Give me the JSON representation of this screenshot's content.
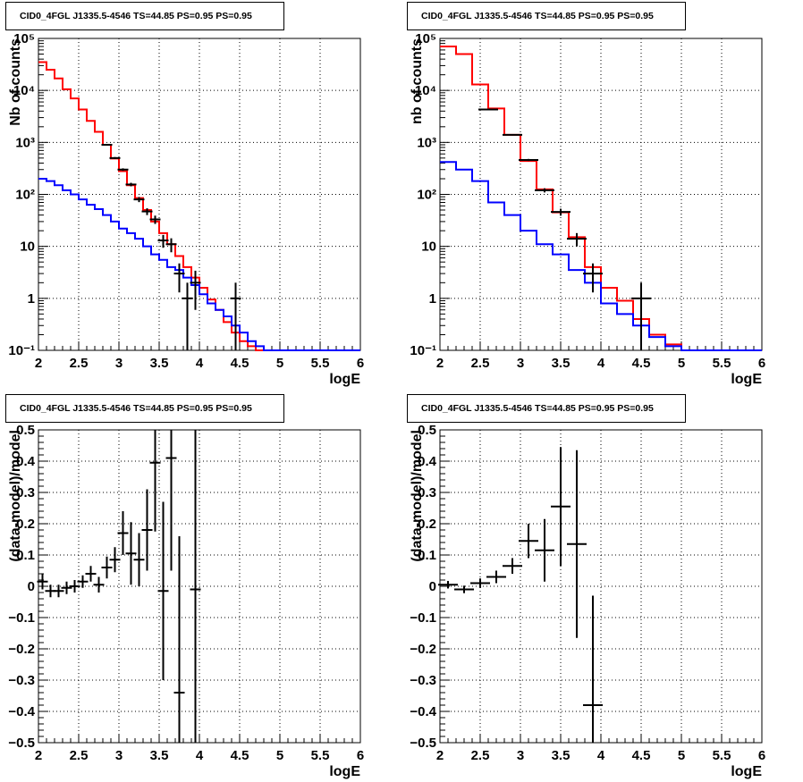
{
  "colors": {
    "data": "#000000",
    "total_model": "#ff0000",
    "component": "#0000ff",
    "grid": "#000000"
  },
  "chart_data": [
    {
      "type": "line",
      "title": "CID0_4FGL J1335.5-4546 TS=44.85 PS=0.95 PS=0.95",
      "xlabel": "logE",
      "ylabel": "Nb of counts",
      "xlim": [
        2,
        6
      ],
      "ylim": [
        0.1,
        100000
      ],
      "yscale": "log",
      "grid": true,
      "x_ticks": [
        "2",
        "2.5",
        "3",
        "3.5",
        "4",
        "4.5",
        "5",
        "5.5",
        "6"
      ],
      "y_ticks": [
        "10⁻¹",
        "1",
        "10",
        "10²",
        "10³",
        "10⁴",
        "10⁵"
      ],
      "bin_edges": [
        2.0,
        2.1,
        2.2,
        2.3,
        2.4,
        2.5,
        2.6,
        2.7,
        2.8,
        2.9,
        3.0,
        3.1,
        3.2,
        3.3,
        3.4,
        3.5,
        3.6,
        3.7,
        3.8,
        3.9,
        4.0,
        4.1,
        4.2,
        4.3,
        4.4,
        4.5,
        4.6,
        4.7,
        4.8,
        4.9,
        5.0,
        5.1,
        5.2,
        5.3,
        5.4,
        5.5,
        5.6,
        5.7,
        5.8,
        5.9,
        6.0
      ],
      "series": [
        {
          "name": "model",
          "color": "#ff0000",
          "step": true,
          "values": [
            35000,
            25000,
            17000,
            10500,
            7000,
            4300,
            2600,
            1600,
            900,
            490,
            280,
            150,
            85,
            50,
            30,
            18,
            11,
            6.5,
            4.0,
            2.5,
            1.6,
            0.95,
            0.6,
            0.35,
            0.22,
            0.15,
            0.12,
            0.1,
            0.1,
            0.1,
            0.1,
            0.1,
            0.1,
            0.1,
            0.1,
            0.1,
            0.1,
            0.1,
            0.1,
            0.1
          ]
        },
        {
          "name": "component",
          "color": "#0000ff",
          "step": true,
          "values": [
            200,
            180,
            150,
            120,
            100,
            80,
            63,
            52,
            40,
            30,
            22,
            18,
            14,
            10,
            7,
            5.5,
            4,
            3.5,
            2.5,
            1.8,
            1.2,
            0.8,
            0.6,
            0.45,
            0.3,
            0.22,
            0.15,
            0.12,
            0.1,
            0.1,
            0.1,
            0.1,
            0.1,
            0.1,
            0.1,
            0.1,
            0.1,
            0.1,
            0.1,
            0.1
          ]
        }
      ],
      "points": [
        {
          "x": 2.85,
          "y": 900,
          "err": 30
        },
        {
          "x": 2.95,
          "y": 500,
          "err": 22
        },
        {
          "x": 3.05,
          "y": 300,
          "err": 17
        },
        {
          "x": 3.15,
          "y": 155,
          "err": 12
        },
        {
          "x": 3.25,
          "y": 80,
          "err": 9
        },
        {
          "x": 3.35,
          "y": 47,
          "err": 7
        },
        {
          "x": 3.45,
          "y": 33,
          "err": 6
        },
        {
          "x": 3.55,
          "y": 13,
          "err": 3.6
        },
        {
          "x": 3.65,
          "y": 11,
          "err": 3.3
        },
        {
          "x": 3.75,
          "y": 3,
          "err": 1.7
        },
        {
          "x": 3.85,
          "y": 1,
          "err": 1
        },
        {
          "x": 3.95,
          "y": 2,
          "err": 1.4
        },
        {
          "x": 4.45,
          "y": 1,
          "err": 1
        }
      ]
    },
    {
      "type": "line",
      "title": "CID0_4FGL J1335.5-4546 TS=44.85 PS=0.95 PS=0.95",
      "xlabel": "logE",
      "ylabel": "nb of counts",
      "xlim": [
        2,
        6
      ],
      "ylim": [
        0.1,
        100000
      ],
      "yscale": "log",
      "grid": true,
      "x_ticks": [
        "2",
        "2.5",
        "3",
        "3.5",
        "4",
        "4.5",
        "5",
        "5.5",
        "6"
      ],
      "y_ticks": [
        "10⁻¹",
        "1",
        "10",
        "10²",
        "10³",
        "10⁴",
        "10⁵"
      ],
      "bin_edges": [
        2.0,
        2.2,
        2.4,
        2.6,
        2.8,
        3.0,
        3.2,
        3.4,
        3.6,
        3.8,
        4.0,
        4.2,
        4.4,
        4.6,
        4.8,
        5.0,
        5.2,
        5.4,
        5.6,
        5.8,
        6.0
      ],
      "series": [
        {
          "name": "model",
          "color": "#ff0000",
          "step": true,
          "values": [
            70000,
            50000,
            13000,
            4500,
            1400,
            440,
            125,
            45,
            15,
            4,
            1.6,
            0.9,
            0.4,
            0.2,
            0.13,
            0.1,
            0.1,
            0.1,
            0.1,
            0.1
          ]
        },
        {
          "name": "component",
          "color": "#0000ff",
          "step": true,
          "values": [
            420,
            300,
            180,
            70,
            40,
            20,
            11,
            7,
            3.5,
            2,
            0.8,
            0.5,
            0.3,
            0.18,
            0.12,
            0.1,
            0.1,
            0.1,
            0.1,
            0.1
          ]
        }
      ],
      "points": [
        {
          "x": 2.6,
          "y": 4300,
          "err": 70
        },
        {
          "x": 2.9,
          "y": 1400,
          "err": 40
        },
        {
          "x": 3.1,
          "y": 460,
          "err": 21
        },
        {
          "x": 3.3,
          "y": 120,
          "err": 11
        },
        {
          "x": 3.5,
          "y": 46,
          "err": 7
        },
        {
          "x": 3.7,
          "y": 14,
          "err": 4
        },
        {
          "x": 3.9,
          "y": 3,
          "err": 1.7
        },
        {
          "x": 4.5,
          "y": 1,
          "err": 1
        }
      ]
    },
    {
      "type": "scatter",
      "title": "CID0_4FGL J1335.5-4546 TS=44.85 PS=0.95 PS=0.95",
      "xlabel": "logE",
      "ylabel": "(data-model)/model",
      "xlim": [
        2,
        6
      ],
      "ylim": [
        -0.5,
        0.5
      ],
      "grid": true,
      "x_ticks": [
        "2",
        "2.5",
        "3",
        "3.5",
        "4",
        "4.5",
        "5",
        "5.5",
        "6"
      ],
      "y_ticks": [
        "−0.5",
        "−0.4",
        "−0.3",
        "−0.2",
        "−0.1",
        "0",
        "0.1",
        "0.2",
        "0.3",
        "0.4",
        "0.5"
      ],
      "points": [
        {
          "x": 2.05,
          "y": 0.015,
          "err": 0.025
        },
        {
          "x": 2.15,
          "y": -0.015,
          "err": 0.02
        },
        {
          "x": 2.25,
          "y": -0.015,
          "err": 0.02
        },
        {
          "x": 2.35,
          "y": -0.005,
          "err": 0.02
        },
        {
          "x": 2.45,
          "y": 0.0,
          "err": 0.02
        },
        {
          "x": 2.55,
          "y": 0.015,
          "err": 0.02
        },
        {
          "x": 2.65,
          "y": 0.04,
          "err": 0.025
        },
        {
          "x": 2.75,
          "y": 0.005,
          "err": 0.025
        },
        {
          "x": 2.85,
          "y": 0.06,
          "err": 0.035
        },
        {
          "x": 2.95,
          "y": 0.085,
          "err": 0.04
        },
        {
          "x": 3.05,
          "y": 0.17,
          "err": 0.07
        },
        {
          "x": 3.15,
          "y": 0.105,
          "err": 0.1
        },
        {
          "x": 3.25,
          "y": 0.085,
          "err": 0.085
        },
        {
          "x": 3.35,
          "y": 0.18,
          "err": 0.13
        },
        {
          "x": 3.45,
          "y": 0.395,
          "err": 0.22
        },
        {
          "x": 3.55,
          "y": -0.015,
          "err": 0.285
        },
        {
          "x": 3.65,
          "y": 0.41,
          "err": 0.36
        },
        {
          "x": 3.75,
          "y": -0.34,
          "err": 0.5
        },
        {
          "x": 3.95,
          "y": -0.01,
          "err": 0.7
        }
      ]
    },
    {
      "type": "scatter",
      "title": "CID0_4FGL J1335.5-4546 TS=44.85 PS=0.95 PS=0.95",
      "xlabel": "logE",
      "ylabel": "(data-model)/model",
      "xlim": [
        2,
        6
      ],
      "ylim": [
        -0.5,
        0.5
      ],
      "grid": true,
      "x_ticks": [
        "2",
        "2.5",
        "3",
        "3.5",
        "4",
        "4.5",
        "5",
        "5.5",
        "6"
      ],
      "y_ticks": [
        "−0.5",
        "−0.4",
        "−0.3",
        "−0.2",
        "−0.1",
        "0",
        "0.1",
        "0.2",
        "0.3",
        "0.4",
        "0.5"
      ],
      "points": [
        {
          "x": 2.1,
          "y": 0.005,
          "err": 0.012
        },
        {
          "x": 2.3,
          "y": -0.01,
          "err": 0.012
        },
        {
          "x": 2.5,
          "y": 0.01,
          "err": 0.015
        },
        {
          "x": 2.7,
          "y": 0.03,
          "err": 0.02
        },
        {
          "x": 2.9,
          "y": 0.065,
          "err": 0.025
        },
        {
          "x": 3.1,
          "y": 0.145,
          "err": 0.055
        },
        {
          "x": 3.3,
          "y": 0.115,
          "err": 0.1
        },
        {
          "x": 3.5,
          "y": 0.255,
          "err": 0.19
        },
        {
          "x": 3.7,
          "y": 0.135,
          "err": 0.3
        },
        {
          "x": 3.9,
          "y": -0.38,
          "err": 0.35
        }
      ]
    }
  ]
}
